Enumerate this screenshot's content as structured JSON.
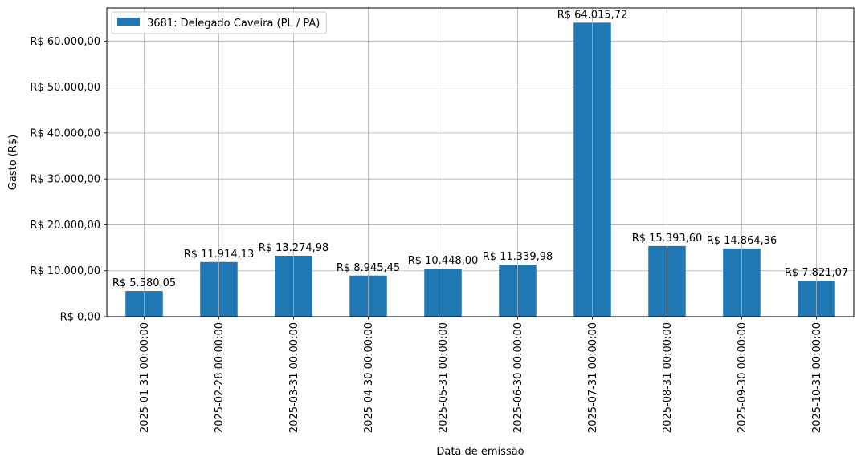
{
  "chart_data": {
    "type": "bar",
    "xlabel": "Data de emissão",
    "ylabel": "Gasto (R$)",
    "categories": [
      "2025-01-31 00:00:00",
      "2025-02-28 00:00:00",
      "2025-03-31 00:00:00",
      "2025-04-30 00:00:00",
      "2025-05-31 00:00:00",
      "2025-06-30 00:00:00",
      "2025-07-31 00:00:00",
      "2025-08-31 00:00:00",
      "2025-09-30 00:00:00",
      "2025-10-31 00:00:00"
    ],
    "series": [
      {
        "name": "3681: Delegado Caveira (PL / PA)",
        "color": "#1f77b4",
        "values": [
          5580.05,
          11914.13,
          13274.98,
          8945.45,
          10448.0,
          11339.98,
          64015.72,
          15393.6,
          14864.36,
          7821.07
        ],
        "value_labels": [
          "R$ 5.580,05",
          "R$ 11.914,13",
          "R$ 13.274,98",
          "R$ 8.945,45",
          "R$ 10.448,00",
          "R$ 11.339,98",
          "R$ 64.015,72",
          "R$ 15.393,60",
          "R$ 14.864,36",
          "R$ 7.821,07"
        ]
      }
    ],
    "ylim": [
      0,
      67216
    ],
    "yticks": [
      0,
      10000,
      20000,
      30000,
      40000,
      50000,
      60000
    ],
    "ytick_labels": [
      "R$ 0,00",
      "R$ 10.000,00",
      "R$ 20.000,00",
      "R$ 30.000,00",
      "R$ 40.000,00",
      "R$ 50.000,00",
      "R$ 60.000,00"
    ],
    "grid": true,
    "legend_position": "top-left"
  }
}
